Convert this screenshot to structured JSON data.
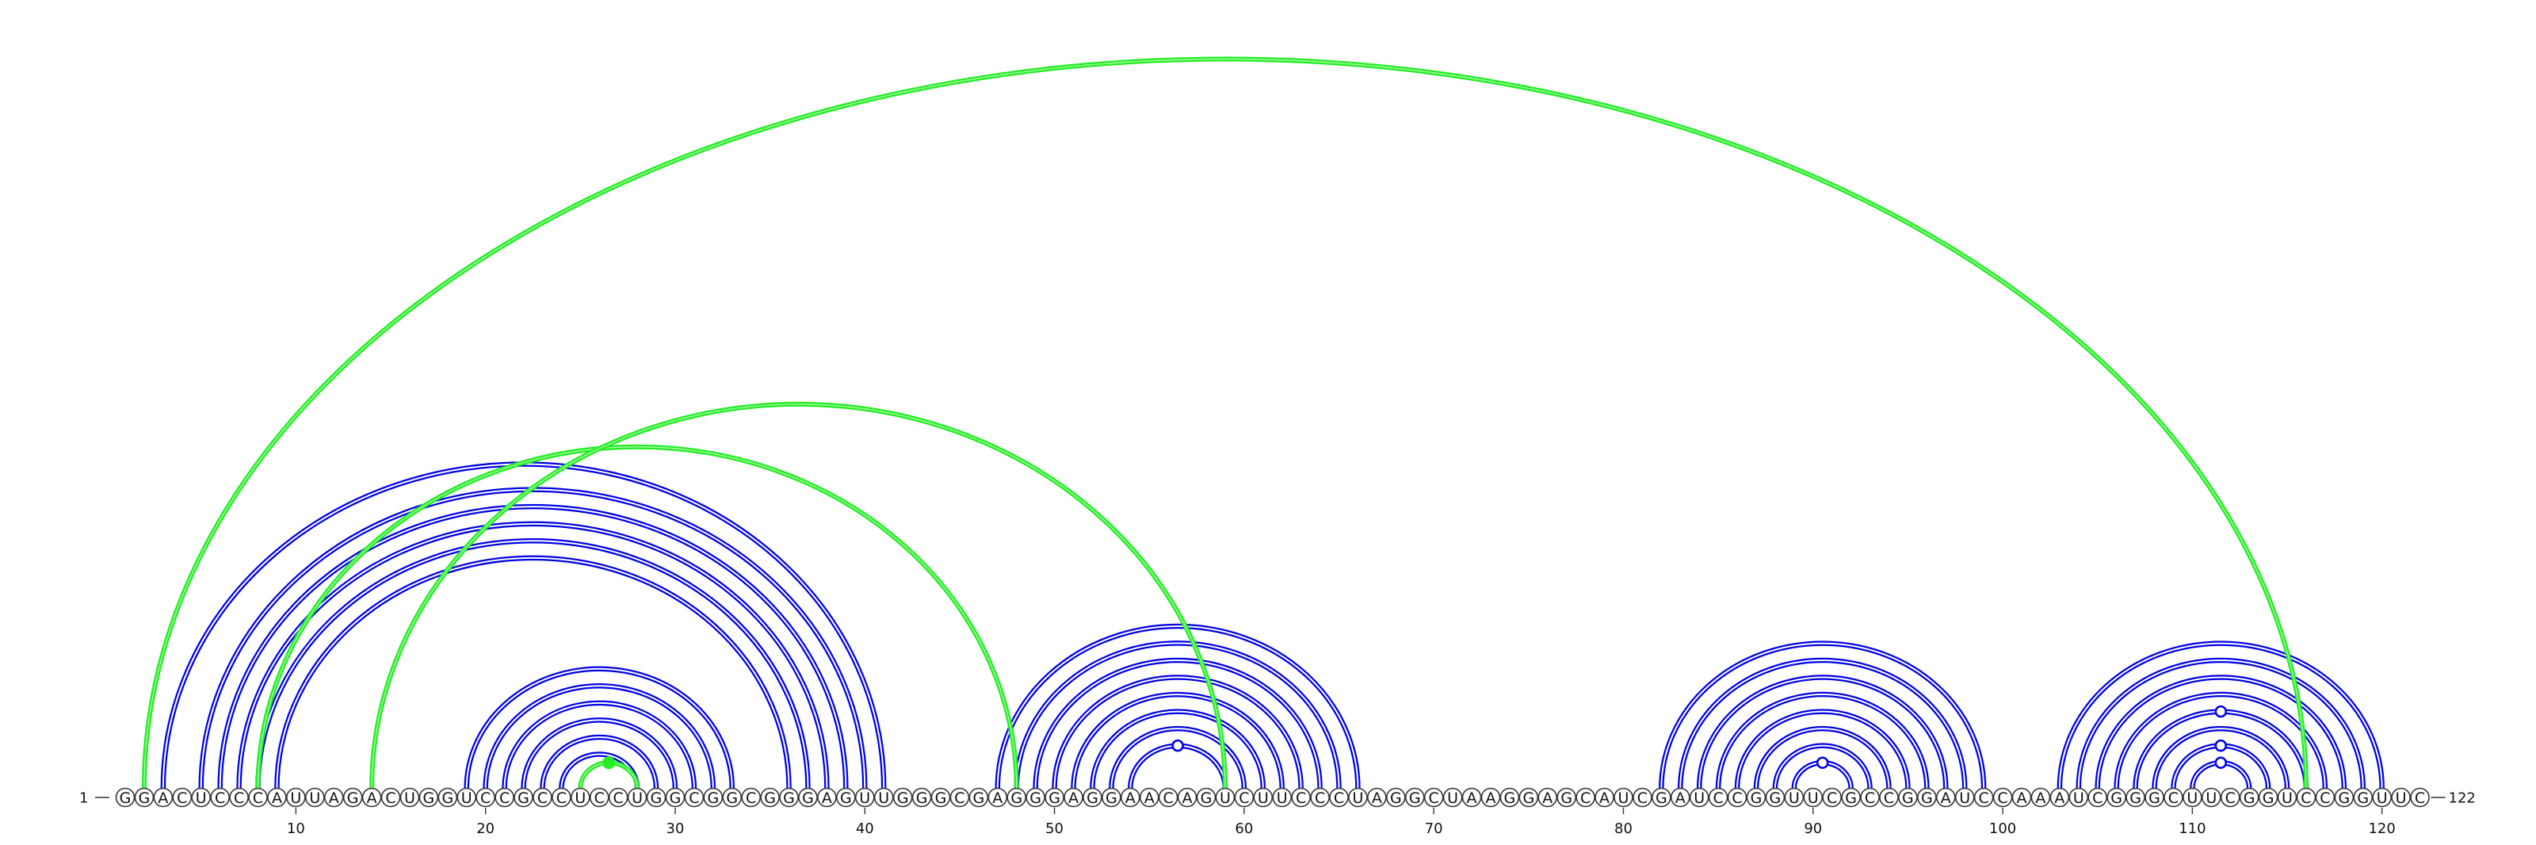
{
  "sequence": "GGACUCCCAUUAGACUGGUCCGCCUCCUGGCGGCGGGAGUUGGGCGAGGGAGGAACAGUCUUCCCUAGGCUAAGGAGCAUCGAUCCGGUUCGCCGGAUCCAAAUCGGGCUUCGGUCCGGUUC",
  "start_label": "1",
  "end_label": "122",
  "ticks": [
    "10",
    "20",
    "30",
    "40",
    "50",
    "60",
    "70",
    "80",
    "90",
    "100",
    "110",
    "120"
  ],
  "colors": {
    "canonical_pair": "#0000e6",
    "alternative_pair": "#22ee22"
  },
  "blue_pairs": [
    [
      3,
      41
    ],
    [
      5,
      40
    ],
    [
      6,
      39
    ],
    [
      7,
      38
    ],
    [
      8,
      37
    ],
    [
      9,
      36
    ],
    [
      19,
      33
    ],
    [
      20,
      32
    ],
    [
      21,
      31
    ],
    [
      22,
      30
    ],
    [
      23,
      29
    ],
    [
      24,
      28
    ],
    [
      47,
      66
    ],
    [
      48,
      65
    ],
    [
      49,
      64
    ],
    [
      50,
      63
    ],
    [
      51,
      62
    ],
    [
      52,
      61
    ],
    [
      53,
      60
    ],
    [
      54,
      59
    ],
    [
      82,
      99
    ],
    [
      83,
      98
    ],
    [
      84,
      97
    ],
    [
      85,
      96
    ],
    [
      86,
      95
    ],
    [
      87,
      94
    ],
    [
      88,
      93
    ],
    [
      89,
      92
    ],
    [
      103,
      120
    ],
    [
      104,
      119
    ],
    [
      105,
      118
    ],
    [
      106,
      117
    ],
    [
      107,
      116
    ],
    [
      108,
      115
    ],
    [
      109,
      114
    ],
    [
      110,
      113
    ]
  ],
  "green_pairs": [
    [
      2,
      116
    ],
    [
      8,
      48
    ],
    [
      14,
      59
    ],
    [
      25,
      28
    ]
  ],
  "gu_pair_markers": [
    [
      54,
      59
    ],
    [
      89,
      92
    ],
    [
      110,
      113
    ],
    [
      109,
      114
    ],
    [
      107,
      116
    ]
  ],
  "green_pair_markers": [
    [
      25,
      28
    ]
  ]
}
